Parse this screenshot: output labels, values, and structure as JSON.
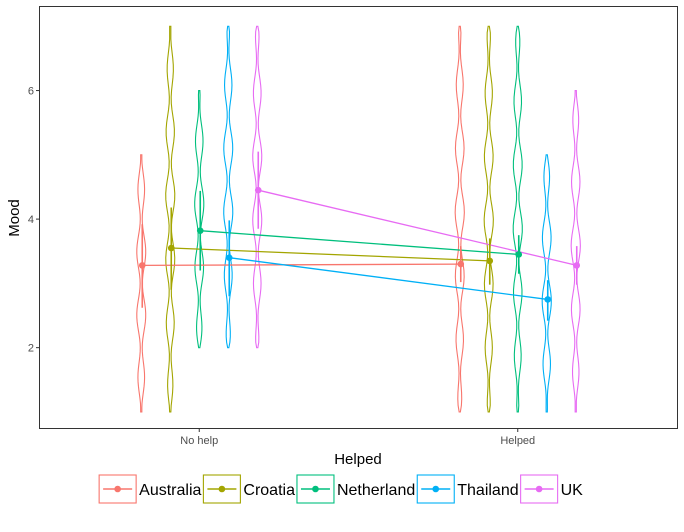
{
  "chart_data": {
    "type": "violin",
    "xlabel": "Helped",
    "ylabel": "Mood",
    "categories": [
      "No help",
      "Helped"
    ],
    "ylim": [
      0.75,
      7.3
    ],
    "yticks": [
      2,
      4,
      6
    ],
    "grid": false,
    "legend_position": "bottom",
    "series": [
      {
        "name": "Australia",
        "color": "#F8766D",
        "points": [
          {
            "category": "No help",
            "mean": 3.28,
            "ci": [
              2.62,
              3.92
            ],
            "range": [
              1,
              5
            ]
          },
          {
            "category": "Helped",
            "mean": 3.3,
            "ci": [
              3.02,
              3.58
            ],
            "range": [
              1,
              7
            ]
          }
        ]
      },
      {
        "name": "Croatia",
        "color": "#A3A500",
        "points": [
          {
            "category": "No help",
            "mean": 3.55,
            "ci": [
              2.9,
              4.18
            ],
            "range": [
              1,
              7
            ]
          },
          {
            "category": "Helped",
            "mean": 3.35,
            "ci": [
              2.98,
              3.7
            ],
            "range": [
              1,
              7
            ]
          }
        ]
      },
      {
        "name": "Netherland",
        "color": "#00BF7D",
        "points": [
          {
            "category": "No help",
            "mean": 3.82,
            "ci": [
              3.2,
              4.44
            ],
            "range": [
              2,
              6
            ]
          },
          {
            "category": "Helped",
            "mean": 3.45,
            "ci": [
              3.15,
              3.75
            ],
            "range": [
              1,
              7
            ]
          }
        ]
      },
      {
        "name": "Thailand",
        "color": "#00B0F6",
        "points": [
          {
            "category": "No help",
            "mean": 3.4,
            "ci": [
              2.8,
              3.98
            ],
            "range": [
              2,
              7
            ]
          },
          {
            "category": "Helped",
            "mean": 2.75,
            "ci": [
              2.42,
              3.05
            ],
            "range": [
              1,
              5
            ]
          }
        ]
      },
      {
        "name": "UK",
        "color": "#E76BF3",
        "points": [
          {
            "category": "No help",
            "mean": 4.45,
            "ci": [
              3.85,
              5.05
            ],
            "range": [
              2,
              7
            ]
          },
          {
            "category": "Helped",
            "mean": 3.28,
            "ci": [
              2.98,
              3.58
            ],
            "range": [
              1,
              6
            ]
          }
        ]
      }
    ]
  }
}
